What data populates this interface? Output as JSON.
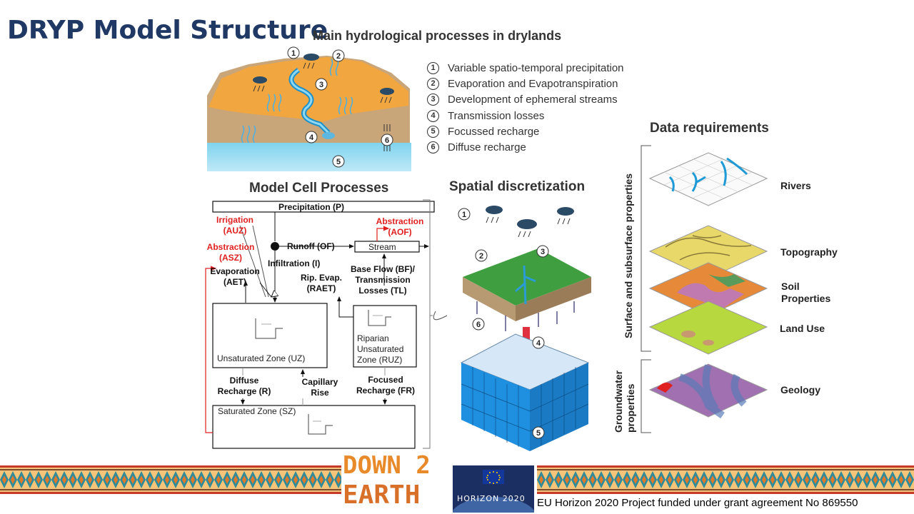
{
  "slide": {
    "title": "DRYP Model Structure"
  },
  "main_processes": {
    "heading": "Main hydrological processes in drylands",
    "items": [
      {
        "num": "1",
        "label": "Variable spatio-temporal precipitation"
      },
      {
        "num": "2",
        "label": "Evaporation and Evapotranspiration"
      },
      {
        "num": "3",
        "label": "Development of ephemeral streams"
      },
      {
        "num": "4",
        "label": "Transmission losses"
      },
      {
        "num": "5",
        "label": "Focussed recharge"
      },
      {
        "num": "6",
        "label": "Diffuse recharge"
      }
    ]
  },
  "model_cell": {
    "heading": "Model Cell Processes",
    "precipitation": "Precipitation (P)",
    "irrigation": [
      "Irrigation",
      "(AUZ)"
    ],
    "abstraction_sz": [
      "Abstraction",
      "(ASZ)"
    ],
    "abstraction_stream": [
      "Abstraction",
      "(AOF)"
    ],
    "runoff": "Runoff (OF)",
    "stream": "Stream",
    "infiltration": "Infiltration (I)",
    "evaporation": [
      "Evaporation",
      "(AET)"
    ],
    "rip_evap": [
      "Rip. Evap.",
      "(RAET)"
    ],
    "baseflow": [
      "Base Flow (BF)/",
      "Transmission",
      "Losses (TL)"
    ],
    "uz": "Unsaturated Zone (UZ)",
    "ruz": [
      "Riparian",
      "Unsaturated",
      "Zone (RUZ)"
    ],
    "diffuse": [
      "Diffuse",
      "Recharge (R)"
    ],
    "capillary": [
      "Capillary",
      "Rise"
    ],
    "focused": [
      "Focused",
      "Recharge (FR)"
    ],
    "sz": "Saturated Zone (SZ)"
  },
  "spatial": {
    "heading": "Spatial discretization",
    "markers": [
      "1",
      "2",
      "3",
      "4",
      "5",
      "6"
    ]
  },
  "data_req": {
    "heading": "Data requirements",
    "layers": [
      "Rivers",
      "Topography",
      [
        "Soil",
        "Properties"
      ],
      "Land Use",
      "Geology"
    ],
    "group_surface": "Surface and subsurface properties",
    "group_ground": [
      "Groundwater",
      "properties"
    ]
  },
  "footer": {
    "logo_line1": "DOWN 2",
    "logo_line2": "EARTH",
    "horizon": "HORIZON 2020",
    "text": "EU Horizon 2020 Project funded under grant agreement No 869550"
  }
}
